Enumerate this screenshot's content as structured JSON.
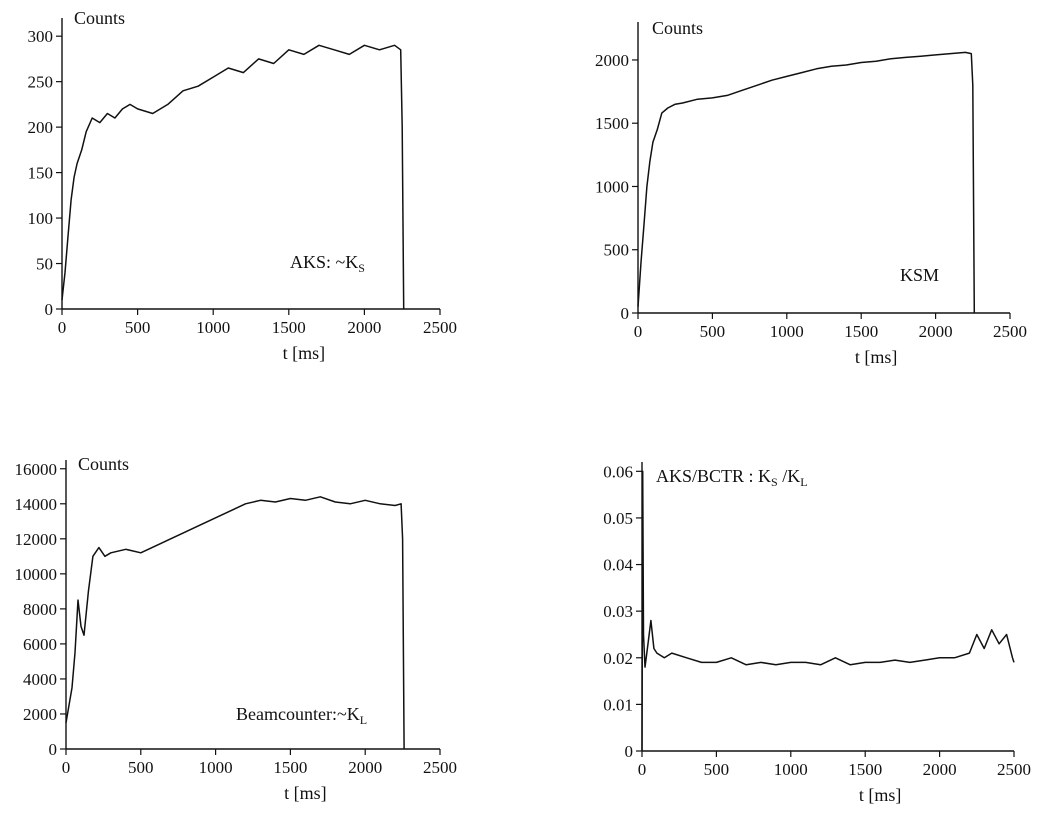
{
  "chart_data": [
    {
      "type": "line",
      "title": "",
      "label": "AKS: ~K",
      "label_sub": "S",
      "ytitle": "Counts",
      "xlabel": "t [ms]",
      "xlim": [
        0,
        2500
      ],
      "ylim": [
        0,
        320
      ],
      "xticks": [
        0,
        500,
        1000,
        1500,
        2000,
        2500
      ],
      "yticks": [
        0,
        50,
        100,
        150,
        200,
        250,
        300
      ],
      "grid": false,
      "series": [
        {
          "x": [
            0,
            20,
            40,
            60,
            80,
            100,
            130,
            160,
            200,
            250,
            300,
            350,
            400,
            450,
            500,
            600,
            700,
            800,
            900,
            1000,
            1100,
            1200,
            1300,
            1400,
            1500,
            1600,
            1700,
            1800,
            1900,
            2000,
            2100,
            2200,
            2240,
            2250,
            2260
          ],
          "y": [
            10,
            40,
            80,
            120,
            145,
            160,
            175,
            195,
            210,
            205,
            215,
            210,
            220,
            225,
            220,
            215,
            225,
            240,
            245,
            255,
            265,
            260,
            275,
            270,
            285,
            280,
            290,
            285,
            280,
            290,
            285,
            290,
            285,
            200,
            0
          ]
        }
      ]
    },
    {
      "type": "line",
      "title": "",
      "label": "KSM",
      "label_sub": "",
      "ytitle": "Counts",
      "xlabel": "t [ms]",
      "xlim": [
        0,
        2500
      ],
      "ylim": [
        0,
        2300
      ],
      "xticks": [
        0,
        500,
        1000,
        1500,
        2000,
        2500
      ],
      "yticks": [
        0,
        500,
        1000,
        1500,
        2000
      ],
      "grid": false,
      "series": [
        {
          "x": [
            0,
            20,
            40,
            60,
            80,
            100,
            130,
            160,
            200,
            250,
            300,
            400,
            500,
            600,
            700,
            800,
            900,
            1000,
            1100,
            1200,
            1300,
            1400,
            1500,
            1600,
            1700,
            1800,
            1900,
            2000,
            2100,
            2200,
            2240,
            2250,
            2260
          ],
          "y": [
            50,
            400,
            700,
            1000,
            1200,
            1350,
            1450,
            1580,
            1620,
            1650,
            1660,
            1690,
            1700,
            1720,
            1760,
            1800,
            1840,
            1870,
            1900,
            1930,
            1950,
            1960,
            1980,
            1990,
            2010,
            2020,
            2030,
            2040,
            2050,
            2060,
            2050,
            1800,
            0
          ]
        }
      ]
    },
    {
      "type": "line",
      "title": "",
      "label": "Beamcounter:~K",
      "label_sub": "L",
      "ytitle": "Counts",
      "xlabel": "t [ms]",
      "xlim": [
        0,
        2500
      ],
      "ylim": [
        0,
        16500
      ],
      "xticks": [
        0,
        500,
        1000,
        1500,
        2000,
        2500
      ],
      "yticks": [
        0,
        2000,
        4000,
        6000,
        8000,
        10000,
        12000,
        14000,
        16000
      ],
      "grid": false,
      "series": [
        {
          "x": [
            0,
            20,
            40,
            60,
            80,
            100,
            120,
            150,
            180,
            220,
            260,
            300,
            400,
            500,
            600,
            700,
            800,
            900,
            1000,
            1100,
            1200,
            1300,
            1400,
            1500,
            1600,
            1700,
            1800,
            1900,
            2000,
            2100,
            2200,
            2240,
            2250,
            2260
          ],
          "y": [
            1500,
            2500,
            3500,
            5500,
            8500,
            7000,
            6500,
            9000,
            11000,
            11500,
            11000,
            11200,
            11400,
            11200,
            11600,
            12000,
            12400,
            12800,
            13200,
            13600,
            14000,
            14200,
            14100,
            14300,
            14200,
            14400,
            14100,
            14000,
            14200,
            14000,
            13900,
            14000,
            12000,
            0
          ]
        }
      ]
    },
    {
      "type": "line",
      "title": "",
      "label": "AKS/BCTR : K",
      "label_sub": "S",
      "label_mid": " /K",
      "label_sub2": "L",
      "ytitle": "",
      "xlabel": "t [ms]",
      "xlim": [
        0,
        2500
      ],
      "ylim": [
        0,
        0.062
      ],
      "xticks": [
        0,
        500,
        1000,
        1500,
        2000,
        2500
      ],
      "yticks": [
        0,
        0.01,
        0.02,
        0.03,
        0.04,
        0.05,
        0.06
      ],
      "ytick_labels": [
        "0",
        "0.01",
        "0.02",
        "0.03",
        "0.04",
        "0.05",
        "0.06"
      ],
      "grid": false,
      "series": [
        {
          "x": [
            0,
            5,
            10,
            20,
            40,
            60,
            80,
            100,
            150,
            200,
            300,
            400,
            500,
            600,
            700,
            800,
            900,
            1000,
            1100,
            1200,
            1300,
            1400,
            1500,
            1600,
            1700,
            1800,
            1900,
            2000,
            2100,
            2200,
            2250,
            2300,
            2350,
            2400,
            2450,
            2490,
            2500
          ],
          "y": [
            0,
            0.06,
            0.025,
            0.018,
            0.023,
            0.028,
            0.022,
            0.021,
            0.02,
            0.021,
            0.02,
            0.019,
            0.019,
            0.02,
            0.0185,
            0.019,
            0.0185,
            0.019,
            0.019,
            0.0185,
            0.02,
            0.0185,
            0.019,
            0.019,
            0.0195,
            0.019,
            0.0195,
            0.02,
            0.02,
            0.021,
            0.025,
            0.022,
            0.026,
            0.023,
            0.025,
            0.02,
            0.019
          ]
        }
      ]
    }
  ]
}
